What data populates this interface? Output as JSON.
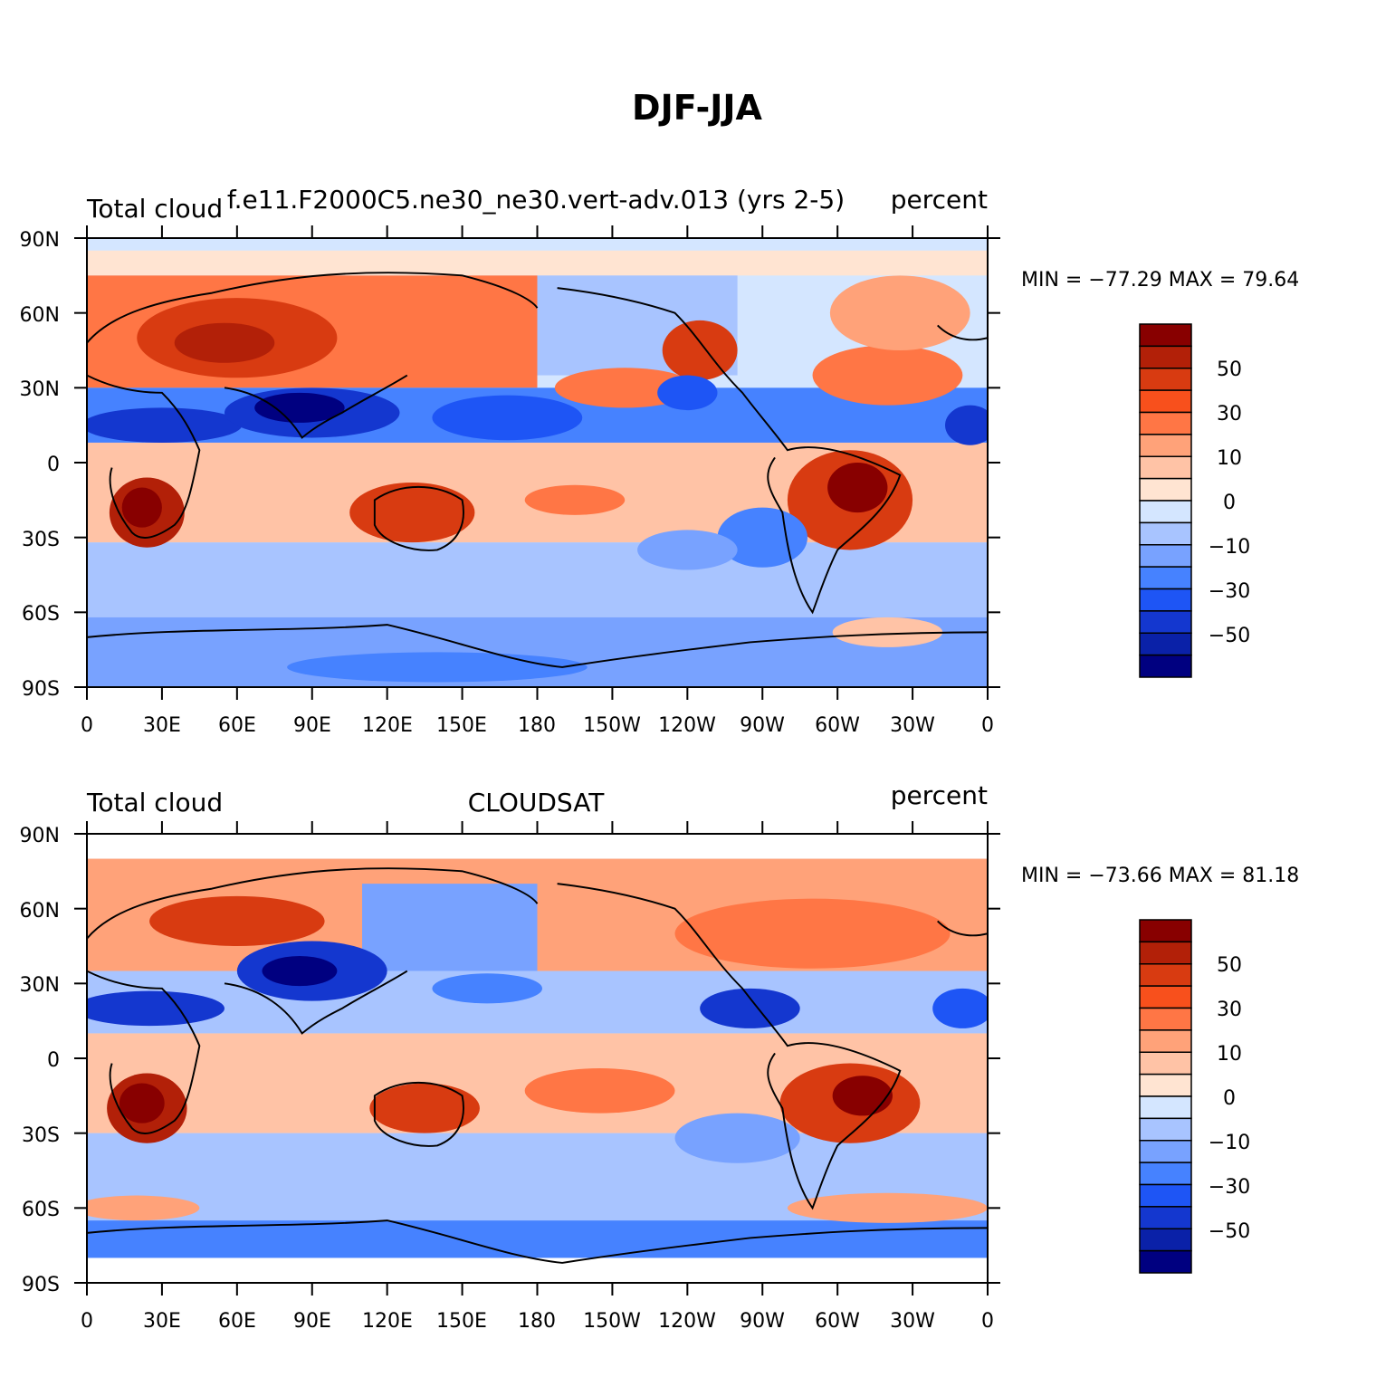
{
  "main_title": "DJF-JJA",
  "colors": {
    "levels": [
      "#000080",
      "#0a21a8",
      "#1437cf",
      "#1e55f5",
      "#4682ff",
      "#78a2ff",
      "#a8c4ff",
      "#d4e6ff",
      "#ffe4d2",
      "#ffc3a6",
      "#ffa279",
      "#ff7645",
      "#f8501c",
      "#d83b11",
      "#b22008",
      "#880000"
    ],
    "land_outline": "#000000"
  },
  "panels": [
    {
      "left_label": "Total cloud",
      "center_label": "f.e11.F2000C5.ne30_ne30.vert-adv.013 (yrs 2-5)",
      "right_label": "percent",
      "stats": "MIN = −77.29 MAX =  79.64",
      "lat_ticks": [
        "90N",
        "60N",
        "30N",
        "0",
        "30S",
        "60S",
        "90S"
      ],
      "lon_ticks": [
        "0",
        "30E",
        "60E",
        "90E",
        "120E",
        "150E",
        "180",
        "150W",
        "120W",
        "90W",
        "60W",
        "30W",
        "0"
      ],
      "colorbar_labels": [
        "50",
        "30",
        "10",
        "0",
        "−10",
        "−30",
        "−50"
      ]
    },
    {
      "left_label": "Total cloud",
      "center_label": "CLOUDSAT",
      "right_label": "percent",
      "stats": "MIN = −73.66 MAX =  81.18",
      "lat_ticks": [
        "90N",
        "60N",
        "30N",
        "0",
        "30S",
        "60S",
        "90S"
      ],
      "lon_ticks": [
        "0",
        "30E",
        "60E",
        "90E",
        "120E",
        "150E",
        "180",
        "150W",
        "120W",
        "90W",
        "60W",
        "30W",
        "0"
      ],
      "colorbar_labels": [
        "50",
        "30",
        "10",
        "0",
        "−10",
        "−30",
        "−50"
      ]
    }
  ]
}
